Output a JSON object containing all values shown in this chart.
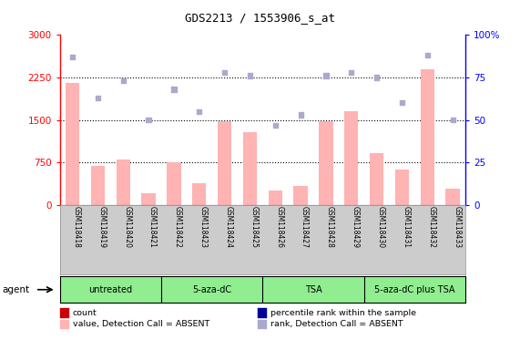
{
  "title": "GDS2213 / 1553906_s_at",
  "samples": [
    "GSM118418",
    "GSM118419",
    "GSM118420",
    "GSM118421",
    "GSM118422",
    "GSM118423",
    "GSM118424",
    "GSM118425",
    "GSM118426",
    "GSM118427",
    "GSM118428",
    "GSM118429",
    "GSM118430",
    "GSM118431",
    "GSM118432",
    "GSM118433"
  ],
  "bar_values": [
    2150,
    680,
    800,
    200,
    750,
    380,
    1480,
    1280,
    250,
    340,
    1470,
    1650,
    920,
    620,
    2400,
    280
  ],
  "bar_absent": [
    true,
    true,
    true,
    true,
    true,
    true,
    true,
    true,
    true,
    true,
    true,
    true,
    true,
    true,
    true,
    true
  ],
  "rank_values": [
    87,
    63,
    73,
    50,
    68,
    55,
    78,
    76,
    47,
    53,
    76,
    78,
    75,
    60,
    88,
    50
  ],
  "rank_absent": [
    true,
    true,
    true,
    true,
    true,
    true,
    true,
    true,
    true,
    true,
    true,
    true,
    true,
    true,
    true,
    true
  ],
  "bar_color_absent": "#ffb3b3",
  "rank_color_absent": "#aaaacc",
  "ylim_left": [
    0,
    3000
  ],
  "ylim_right": [
    0,
    100
  ],
  "yticks_left": [
    0,
    750,
    1500,
    2250,
    3000
  ],
  "yticks_right": [
    0,
    25,
    50,
    75,
    100
  ],
  "gridlines": [
    750,
    1500,
    2250
  ],
  "groups": [
    {
      "label": "untreated",
      "start": 0,
      "end": 4
    },
    {
      "label": "5-aza-dC",
      "start": 4,
      "end": 8
    },
    {
      "label": "TSA",
      "start": 8,
      "end": 12
    },
    {
      "label": "5-aza-dC plus TSA",
      "start": 12,
      "end": 16
    }
  ],
  "group_color": "#90ee90",
  "tick_label_area_color": "#cccccc",
  "legend_items": [
    {
      "label": "count",
      "color": "#cc0000"
    },
    {
      "label": "percentile rank within the sample",
      "color": "#000099"
    },
    {
      "label": "value, Detection Call = ABSENT",
      "color": "#ffb3b3"
    },
    {
      "label": "rank, Detection Call = ABSENT",
      "color": "#aaaacc"
    }
  ]
}
